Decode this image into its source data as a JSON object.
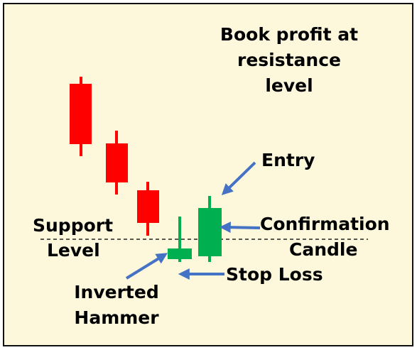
{
  "colors": {
    "background": "#fdf8dc",
    "frame": "#111111",
    "bearish": "#ff0000",
    "bullish": "#00b050",
    "arrow": "#4472c4",
    "support_line": "#222222"
  },
  "candles": [
    {
      "name": "bearish-candle-1",
      "trend": "bearish"
    },
    {
      "name": "bearish-candle-2",
      "trend": "bearish"
    },
    {
      "name": "bearish-candle-3",
      "trend": "bearish"
    },
    {
      "name": "inverted-hammer-candle",
      "trend": "bullish"
    },
    {
      "name": "confirmation-candle",
      "trend": "bullish"
    }
  ],
  "labels": {
    "book_profit": [
      "Book profit at",
      "resistance",
      "level"
    ],
    "entry": "Entry",
    "support": [
      "Support",
      "Level"
    ],
    "confirmation": [
      "Confirmation",
      "Candle"
    ],
    "stop_loss": "Stop Loss",
    "inverted_hammer": [
      "Inverted",
      "Hammer"
    ]
  }
}
